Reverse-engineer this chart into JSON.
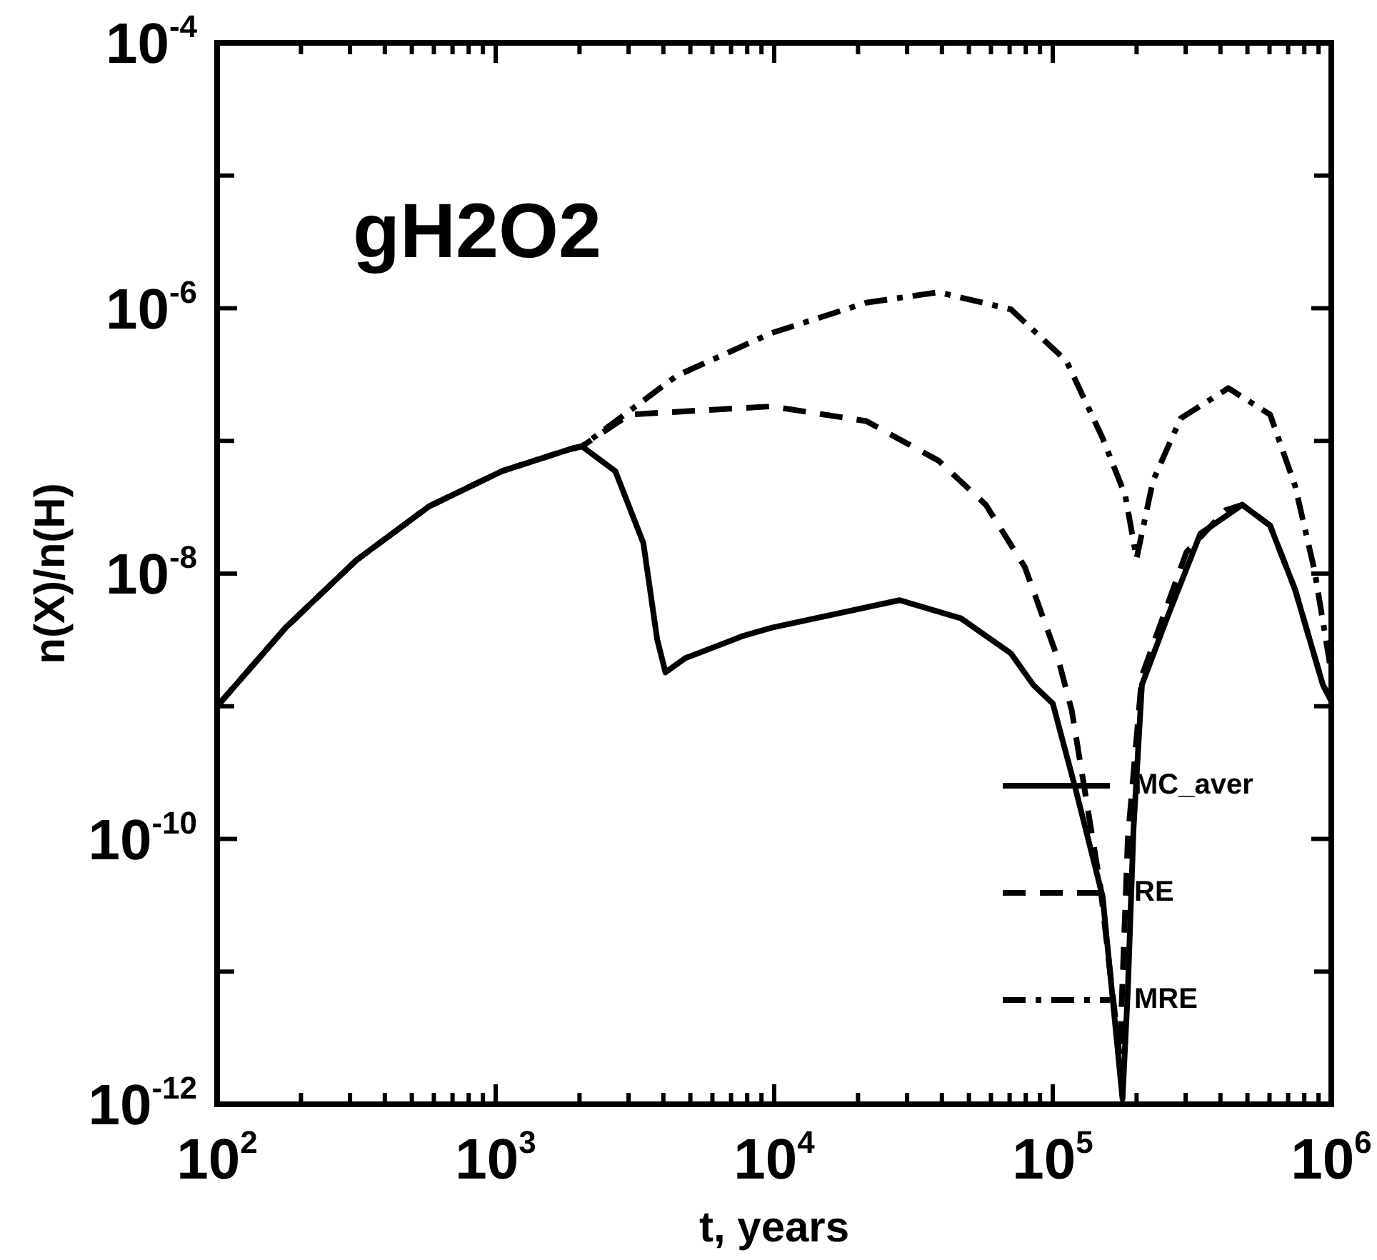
{
  "chart_data": {
    "type": "line",
    "title": "gH2O2",
    "xlabel": "t, years",
    "ylabel": "n(X)/n(H)",
    "log": "xy",
    "xlim": [
      100,
      1000000
    ],
    "ylim": [
      1e-12,
      0.0001
    ],
    "xticks": [
      {
        "value": 100,
        "label": "10$^{2}$"
      },
      {
        "value": 200,
        "label": null
      },
      {
        "value": 300,
        "label": null
      },
      {
        "value": 400,
        "label": null
      },
      {
        "value": 500,
        "label": null
      },
      {
        "value": 600,
        "label": null
      },
      {
        "value": 700,
        "label": null
      },
      {
        "value": 800,
        "label": null
      },
      {
        "value": 900,
        "label": null
      },
      {
        "value": 1000,
        "label": "10$^{3}$"
      },
      {
        "value": 2000,
        "label": null
      },
      {
        "value": 3000,
        "label": null
      },
      {
        "value": 4000,
        "label": null
      },
      {
        "value": 5000,
        "label": null
      },
      {
        "value": 6000,
        "label": null
      },
      {
        "value": 7000,
        "label": null
      },
      {
        "value": 8000,
        "label": null
      },
      {
        "value": 9000,
        "label": null
      },
      {
        "value": 10000,
        "label": "10$^{4}$"
      },
      {
        "value": 20000,
        "label": null
      },
      {
        "value": 30000,
        "label": null
      },
      {
        "value": 40000,
        "label": null
      },
      {
        "value": 50000,
        "label": null
      },
      {
        "value": 60000,
        "label": null
      },
      {
        "value": 70000,
        "label": null
      },
      {
        "value": 80000,
        "label": null
      },
      {
        "value": 90000,
        "label": null
      },
      {
        "value": 100000,
        "label": "10$^{5}$"
      },
      {
        "value": 200000,
        "label": null
      },
      {
        "value": 300000,
        "label": null
      },
      {
        "value": 400000,
        "label": null
      },
      {
        "value": 500000,
        "label": null
      },
      {
        "value": 600000,
        "label": null
      },
      {
        "value": 700000,
        "label": null
      },
      {
        "value": 800000,
        "label": null
      },
      {
        "value": 900000,
        "label": null
      },
      {
        "value": 1000000,
        "label": "10$^{6}$"
      }
    ],
    "yticks": [
      {
        "value": 1e-12,
        "label": "10$^{-12}$"
      },
      {
        "value": 1e-11,
        "label": null
      },
      {
        "value": 1e-10,
        "label": "10$^{-10}$"
      },
      {
        "value": 1e-09,
        "label": null
      },
      {
        "value": 1e-08,
        "label": "10$^{-8}$"
      },
      {
        "value": 1e-07,
        "label": null
      },
      {
        "value": 1e-06,
        "label": "10$^{-6}$"
      },
      {
        "value": 1e-05,
        "label": null
      },
      {
        "value": 0.0001,
        "label": "10$^{-4}$"
      }
    ],
    "grid": false,
    "legend": "bottom right",
    "marker": "none",
    "series": [
      {
        "name": "MC_aver",
        "color": "#000000",
        "line_style": "solid",
        "x": [
          100,
          176,
          316,
          575,
          1050,
          1860,
          2040,
          2690,
          3390,
          3800,
          4070,
          4790,
          7760,
          9770,
          28200,
          46800,
          70800,
          85100,
          100000,
          120000,
          151000,
          178000,
          186000,
          195000,
          209000,
          257000,
          339000,
          479000,
          603000,
          741000,
          933000,
          1000000
        ],
        "values": [
          1e-09,
          3.9e-09,
          1.26e-08,
          3.2e-08,
          5.9e-08,
          8.7e-08,
          9.1e-08,
          5.9e-08,
          1.7e-08,
          3.2e-09,
          1.8e-09,
          2.3e-09,
          3.4e-09,
          3.9e-09,
          6.3e-09,
          4.6e-09,
          2.5e-09,
          1.45e-09,
          1.05e-09,
          2.5e-10,
          3.7e-11,
          1.1e-12,
          7.2e-12,
          1.2e-10,
          1.45e-09,
          4.6e-09,
          2e-08,
          3.3e-08,
          2.3e-08,
          7.6e-09,
          1.45e-09,
          1.1e-09
        ]
      },
      {
        "name": "RE",
        "color": "#000000",
        "line_style": "dashed",
        "x": [
          100,
          176,
          316,
          575,
          1050,
          1860,
          2040,
          3020,
          9770,
          21400,
          38900,
          57500,
          79400,
          105000,
          117000,
          148000,
          174000,
          186000,
          209000,
          302000,
          417000,
          479000,
          603000,
          741000,
          933000,
          1000000
        ],
        "values": [
          1e-09,
          3.9e-09,
          1.26e-08,
          3.2e-08,
          5.9e-08,
          8.7e-08,
          9.1e-08,
          1.58e-07,
          1.82e-07,
          1.41e-07,
          7.1e-08,
          3.3e-08,
          1.12e-08,
          2.2e-09,
          9.3e-10,
          4.5e-11,
          2.3e-12,
          1e-10,
          1.7e-09,
          1.45e-08,
          3e-08,
          3.3e-08,
          2.3e-08,
          7.6e-09,
          1.45e-09,
          1.1e-09
        ]
      },
      {
        "name": "MRE",
        "color": "#000000",
        "line_style": "dashdot",
        "x": [
          100,
          176,
          316,
          575,
          1050,
          1860,
          2040,
          4470,
          9770,
          21400,
          38900,
          70800,
          112000,
          151000,
          182000,
          200000,
          229000,
          288000,
          427000,
          603000,
          741000,
          871000,
          1000000
        ],
        "values": [
          1e-09,
          3.9e-09,
          1.26e-08,
          3.2e-08,
          5.9e-08,
          8.7e-08,
          9.1e-08,
          3.1e-07,
          6.5e-07,
          1.1e-06,
          1.32e-06,
          9.8e-07,
          4e-07,
          1.05e-07,
          3.9e-08,
          1.3e-08,
          5e-08,
          1.48e-07,
          2.5e-07,
          1.58e-07,
          4.6e-08,
          1.05e-08,
          1.8e-09
        ]
      }
    ]
  }
}
